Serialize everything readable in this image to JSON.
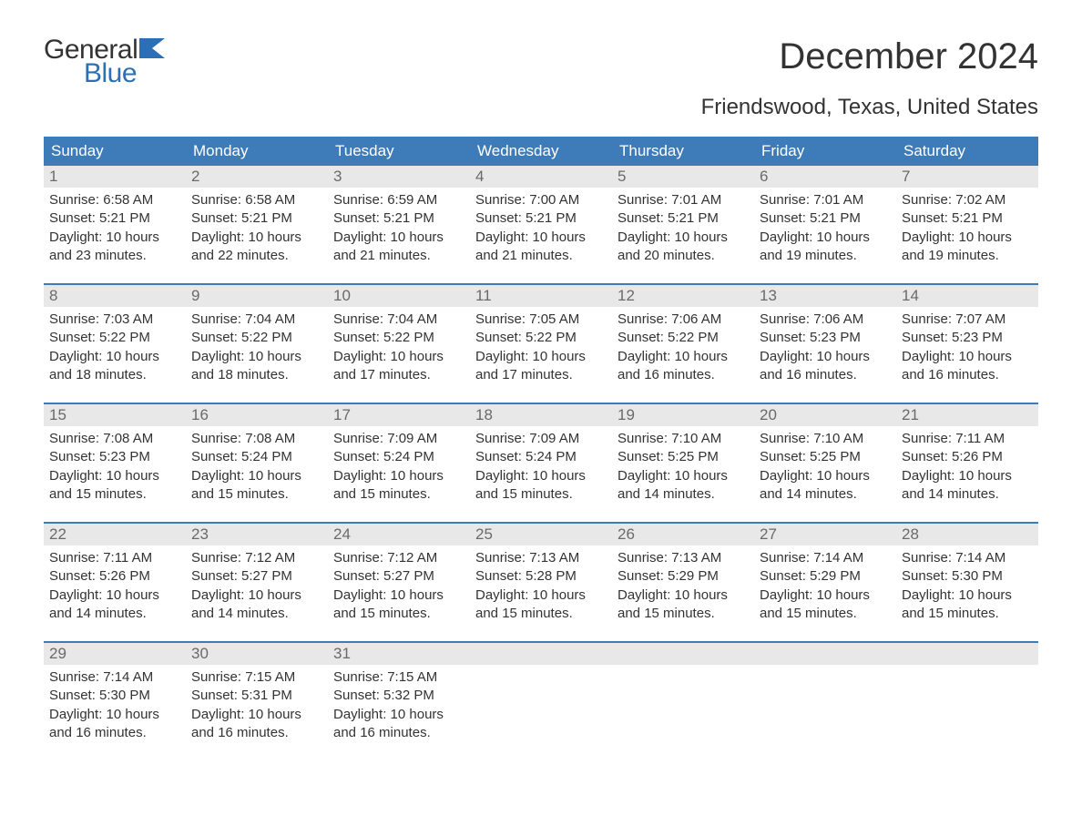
{
  "brand": {
    "general": "General",
    "blue": "Blue",
    "flag_color": "#2d6fb5"
  },
  "title": "December 2024",
  "subtitle": "Friendswood, Texas, United States",
  "colors": {
    "header_bg": "#3e7cb9",
    "header_text": "#ffffff",
    "daynum_bg": "#e8e8e8",
    "daynum_color": "#6a6a6a",
    "body_text": "#333333",
    "accent": "#2d6fb5",
    "page_bg": "#ffffff"
  },
  "weekdays": [
    "Sunday",
    "Monday",
    "Tuesday",
    "Wednesday",
    "Thursday",
    "Friday",
    "Saturday"
  ],
  "weeks": [
    [
      {
        "n": "1",
        "sunrise": "6:58 AM",
        "sunset": "5:21 PM",
        "daylight": "10 hours and 23 minutes."
      },
      {
        "n": "2",
        "sunrise": "6:58 AM",
        "sunset": "5:21 PM",
        "daylight": "10 hours and 22 minutes."
      },
      {
        "n": "3",
        "sunrise": "6:59 AM",
        "sunset": "5:21 PM",
        "daylight": "10 hours and 21 minutes."
      },
      {
        "n": "4",
        "sunrise": "7:00 AM",
        "sunset": "5:21 PM",
        "daylight": "10 hours and 21 minutes."
      },
      {
        "n": "5",
        "sunrise": "7:01 AM",
        "sunset": "5:21 PM",
        "daylight": "10 hours and 20 minutes."
      },
      {
        "n": "6",
        "sunrise": "7:01 AM",
        "sunset": "5:21 PM",
        "daylight": "10 hours and 19 minutes."
      },
      {
        "n": "7",
        "sunrise": "7:02 AM",
        "sunset": "5:21 PM",
        "daylight": "10 hours and 19 minutes."
      }
    ],
    [
      {
        "n": "8",
        "sunrise": "7:03 AM",
        "sunset": "5:22 PM",
        "daylight": "10 hours and 18 minutes."
      },
      {
        "n": "9",
        "sunrise": "7:04 AM",
        "sunset": "5:22 PM",
        "daylight": "10 hours and 18 minutes."
      },
      {
        "n": "10",
        "sunrise": "7:04 AM",
        "sunset": "5:22 PM",
        "daylight": "10 hours and 17 minutes."
      },
      {
        "n": "11",
        "sunrise": "7:05 AM",
        "sunset": "5:22 PM",
        "daylight": "10 hours and 17 minutes."
      },
      {
        "n": "12",
        "sunrise": "7:06 AM",
        "sunset": "5:22 PM",
        "daylight": "10 hours and 16 minutes."
      },
      {
        "n": "13",
        "sunrise": "7:06 AM",
        "sunset": "5:23 PM",
        "daylight": "10 hours and 16 minutes."
      },
      {
        "n": "14",
        "sunrise": "7:07 AM",
        "sunset": "5:23 PM",
        "daylight": "10 hours and 16 minutes."
      }
    ],
    [
      {
        "n": "15",
        "sunrise": "7:08 AM",
        "sunset": "5:23 PM",
        "daylight": "10 hours and 15 minutes."
      },
      {
        "n": "16",
        "sunrise": "7:08 AM",
        "sunset": "5:24 PM",
        "daylight": "10 hours and 15 minutes."
      },
      {
        "n": "17",
        "sunrise": "7:09 AM",
        "sunset": "5:24 PM",
        "daylight": "10 hours and 15 minutes."
      },
      {
        "n": "18",
        "sunrise": "7:09 AM",
        "sunset": "5:24 PM",
        "daylight": "10 hours and 15 minutes."
      },
      {
        "n": "19",
        "sunrise": "7:10 AM",
        "sunset": "5:25 PM",
        "daylight": "10 hours and 14 minutes."
      },
      {
        "n": "20",
        "sunrise": "7:10 AM",
        "sunset": "5:25 PM",
        "daylight": "10 hours and 14 minutes."
      },
      {
        "n": "21",
        "sunrise": "7:11 AM",
        "sunset": "5:26 PM",
        "daylight": "10 hours and 14 minutes."
      }
    ],
    [
      {
        "n": "22",
        "sunrise": "7:11 AM",
        "sunset": "5:26 PM",
        "daylight": "10 hours and 14 minutes."
      },
      {
        "n": "23",
        "sunrise": "7:12 AM",
        "sunset": "5:27 PM",
        "daylight": "10 hours and 14 minutes."
      },
      {
        "n": "24",
        "sunrise": "7:12 AM",
        "sunset": "5:27 PM",
        "daylight": "10 hours and 15 minutes."
      },
      {
        "n": "25",
        "sunrise": "7:13 AM",
        "sunset": "5:28 PM",
        "daylight": "10 hours and 15 minutes."
      },
      {
        "n": "26",
        "sunrise": "7:13 AM",
        "sunset": "5:29 PM",
        "daylight": "10 hours and 15 minutes."
      },
      {
        "n": "27",
        "sunrise": "7:14 AM",
        "sunset": "5:29 PM",
        "daylight": "10 hours and 15 minutes."
      },
      {
        "n": "28",
        "sunrise": "7:14 AM",
        "sunset": "5:30 PM",
        "daylight": "10 hours and 15 minutes."
      }
    ],
    [
      {
        "n": "29",
        "sunrise": "7:14 AM",
        "sunset": "5:30 PM",
        "daylight": "10 hours and 16 minutes."
      },
      {
        "n": "30",
        "sunrise": "7:15 AM",
        "sunset": "5:31 PM",
        "daylight": "10 hours and 16 minutes."
      },
      {
        "n": "31",
        "sunrise": "7:15 AM",
        "sunset": "5:32 PM",
        "daylight": "10 hours and 16 minutes."
      },
      null,
      null,
      null,
      null
    ]
  ],
  "labels": {
    "sunrise": "Sunrise:",
    "sunset": "Sunset:",
    "daylight": "Daylight:"
  }
}
